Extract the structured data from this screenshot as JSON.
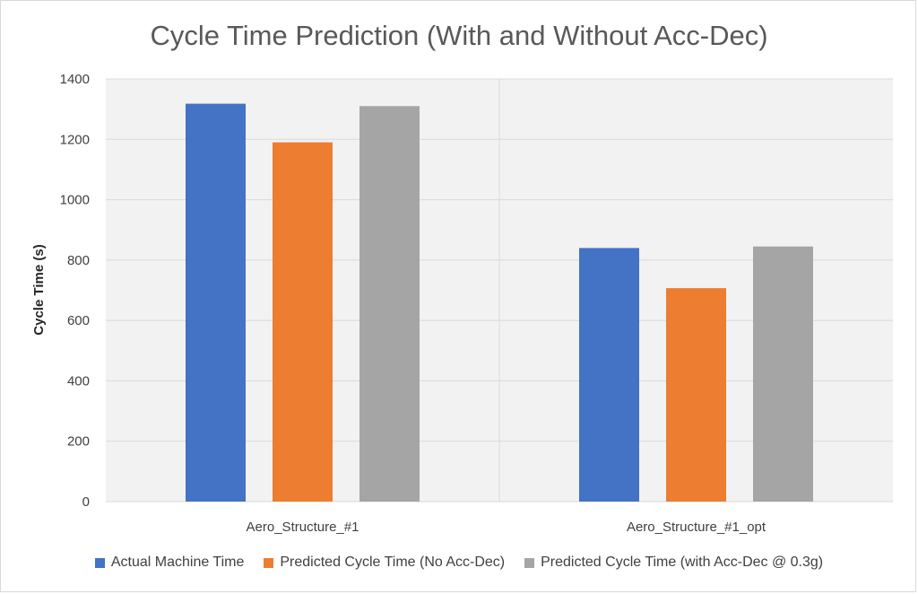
{
  "chart_data": {
    "type": "bar",
    "title": "Cycle Time Prediction (With and Without Acc-Dec)",
    "ylabel": "Cycle Time (s)",
    "xlabel": "",
    "categories": [
      "Aero_Structure_#1",
      "Aero_Structure_#1_opt"
    ],
    "series": [
      {
        "name": "Actual Machine Time",
        "color": "#4472c4",
        "values": [
          1318,
          840
        ]
      },
      {
        "name": "Predicted Cycle Time (No Acc-Dec)",
        "color": "#ed7d31",
        "values": [
          1190,
          707
        ]
      },
      {
        "name": "Predicted Cycle Time (with Acc-Dec @ 0.3g)",
        "color": "#a5a5a5",
        "values": [
          1310,
          845
        ]
      }
    ],
    "ylim": [
      0,
      1400
    ],
    "yticks": [
      0,
      200,
      400,
      600,
      800,
      1000,
      1200,
      1400
    ],
    "grid": true,
    "legend_position": "bottom"
  }
}
